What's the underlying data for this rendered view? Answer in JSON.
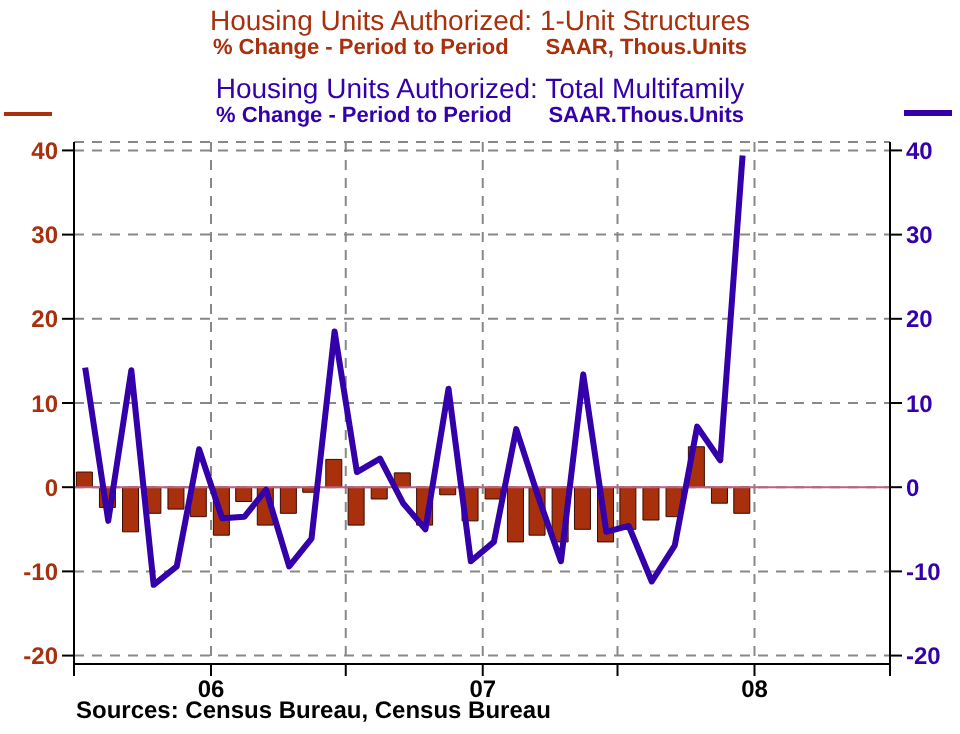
{
  "chart_data": {
    "type": "bar",
    "x": [
      "2005-07-16",
      "2005-08-16",
      "2005-09-16",
      "2005-10-16",
      "2005-11-16",
      "2005-12-16",
      "2006-01-16",
      "2006-02-15",
      "2006-03-16",
      "2006-04-16",
      "2006-05-16",
      "2006-06-16",
      "2006-07-16",
      "2006-08-16",
      "2006-09-16",
      "2006-10-16",
      "2006-11-16",
      "2006-12-16",
      "2007-01-16",
      "2007-02-15",
      "2007-03-16",
      "2007-04-16",
      "2007-05-16",
      "2007-06-16",
      "2007-07-16",
      "2007-08-16",
      "2007-09-16",
      "2007-10-16",
      "2007-11-16",
      "2007-12-16"
    ],
    "series": [
      {
        "name": "Housing Units Authorized: 1-Unit Structures",
        "color": "#a8300c",
        "values": [
          1.8,
          -2.4,
          -5.3,
          -3.1,
          -2.6,
          -3.5,
          -5.7,
          -1.7,
          -4.5,
          -3.1,
          -0.6,
          3.3,
          -4.5,
          -1.4,
          1.7,
          -4.5,
          -0.9,
          -4.0,
          -1.4,
          -6.5,
          -5.7,
          -6.5,
          -5.0,
          -6.5,
          -5.0,
          -3.9,
          -3.5,
          4.8,
          -1.9,
          -3.1
        ]
      },
      {
        "name": "Housing Units Authorized: Total Multifamily",
        "type": "line",
        "axis": "y2",
        "color": "#3300aa",
        "values": [
          14.2,
          -4,
          13.9,
          -11.6,
          -9.4,
          4.5,
          -3.7,
          -3.5,
          -0.3,
          -9.4,
          -6.1,
          18.5,
          1.8,
          3.4,
          -1.9,
          -5.0,
          11.7,
          -8.8,
          -6.5,
          6.9,
          -1.0,
          -8.8,
          13.4,
          -5.3,
          -4.6,
          -11.2,
          -6.9,
          7.2,
          3.2,
          39.4
        ]
      }
    ],
    "annotations": [
      "% Change - Period to Period      SAAR, Thous.Units",
      "% Change - Period to Period      SAAR.Thous.Units",
      "Sources:  Census Bureau, Census Bureau"
    ],
    "xlim": [
      "2005-07-01",
      "2008-07-01"
    ],
    "xticks": [
      {
        "value": "2005-07-01",
        "label": null
      },
      {
        "value": "2006-01-01",
        "label": "06"
      },
      {
        "value": "2006-07-01",
        "label": null
      },
      {
        "value": "2007-01-01",
        "label": "07"
      },
      {
        "value": "2007-07-01",
        "label": null
      },
      {
        "value": "2008-01-01",
        "label": "08"
      },
      {
        "value": "2008-07-01",
        "label": null
      }
    ],
    "ylim": [
      -21,
      41
    ],
    "yticks": [
      -20,
      -10,
      0,
      10,
      20,
      30,
      40
    ],
    "y2lim": [
      -21,
      41
    ],
    "y2ticks": [
      -20,
      -10,
      0,
      10,
      20,
      30,
      40
    ],
    "ref_lines": [
      {
        "axis": "y",
        "value": 0,
        "color": "#c06080"
      }
    ],
    "grid": true,
    "legend": "top",
    "line_style": "solid",
    "marker": "none"
  }
}
